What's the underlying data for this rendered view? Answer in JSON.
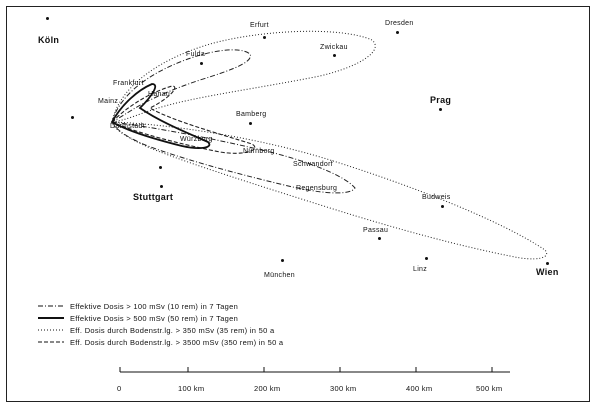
{
  "cities": [
    {
      "id": "koeln",
      "name": "Köln",
      "size": "big"
    },
    {
      "id": "erfurt",
      "name": "Erfurt",
      "size": "small"
    },
    {
      "id": "dresden",
      "name": "Dresden",
      "size": "small"
    },
    {
      "id": "zwickau",
      "name": "Zwickau",
      "size": "small"
    },
    {
      "id": "fulda",
      "name": "Fulda",
      "size": "small"
    },
    {
      "id": "frankfurt",
      "name": "Frankfurt",
      "size": "small"
    },
    {
      "id": "hanau",
      "name": "Hanau",
      "size": "small"
    },
    {
      "id": "mainz",
      "name": "Mainz",
      "size": "small"
    },
    {
      "id": "darmstadt",
      "name": "Darmstadt",
      "size": "small"
    },
    {
      "id": "bamberg",
      "name": "Bamberg",
      "size": "small"
    },
    {
      "id": "wuerzburg",
      "name": "Würzburg",
      "size": "small"
    },
    {
      "id": "nuernberg",
      "name": "Nürnberg",
      "size": "small"
    },
    {
      "id": "schwandorf",
      "name": "Schwandorf",
      "size": "small"
    },
    {
      "id": "regensburg",
      "name": "Regensburg",
      "size": "small"
    },
    {
      "id": "prag",
      "name": "Prag",
      "size": "big"
    },
    {
      "id": "stuttgart",
      "name": "Stuttgart",
      "size": "big"
    },
    {
      "id": "budweis",
      "name": "Budweis",
      "size": "small"
    },
    {
      "id": "passau",
      "name": "Passau",
      "size": "small"
    },
    {
      "id": "linz",
      "name": "Linz",
      "size": "small"
    },
    {
      "id": "muenchen",
      "name": "München",
      "size": "small"
    },
    {
      "id": "wien",
      "name": "Wien",
      "size": "big"
    }
  ],
  "legend": [
    {
      "label": "Effektive Dosis > 100 mSv (10 rem) in 7 Tagen",
      "style": "dash-dot"
    },
    {
      "label": "Effektive Dosis > 500 mSv (50 rem) in 7 Tagen",
      "style": "solid"
    },
    {
      "label": "Eff. Dosis durch Bodenstr.lg. > 350 mSv (35 rem) in 50 a",
      "style": "dotted"
    },
    {
      "label": "Eff. Dosis durch Bodenstr.lg. > 3500 mSv (350 rem) in 50 a",
      "style": "dashed"
    }
  ],
  "scale": {
    "labels": [
      "0",
      "100 km",
      "200 km",
      "300 km",
      "400 km",
      "500 km"
    ]
  }
}
